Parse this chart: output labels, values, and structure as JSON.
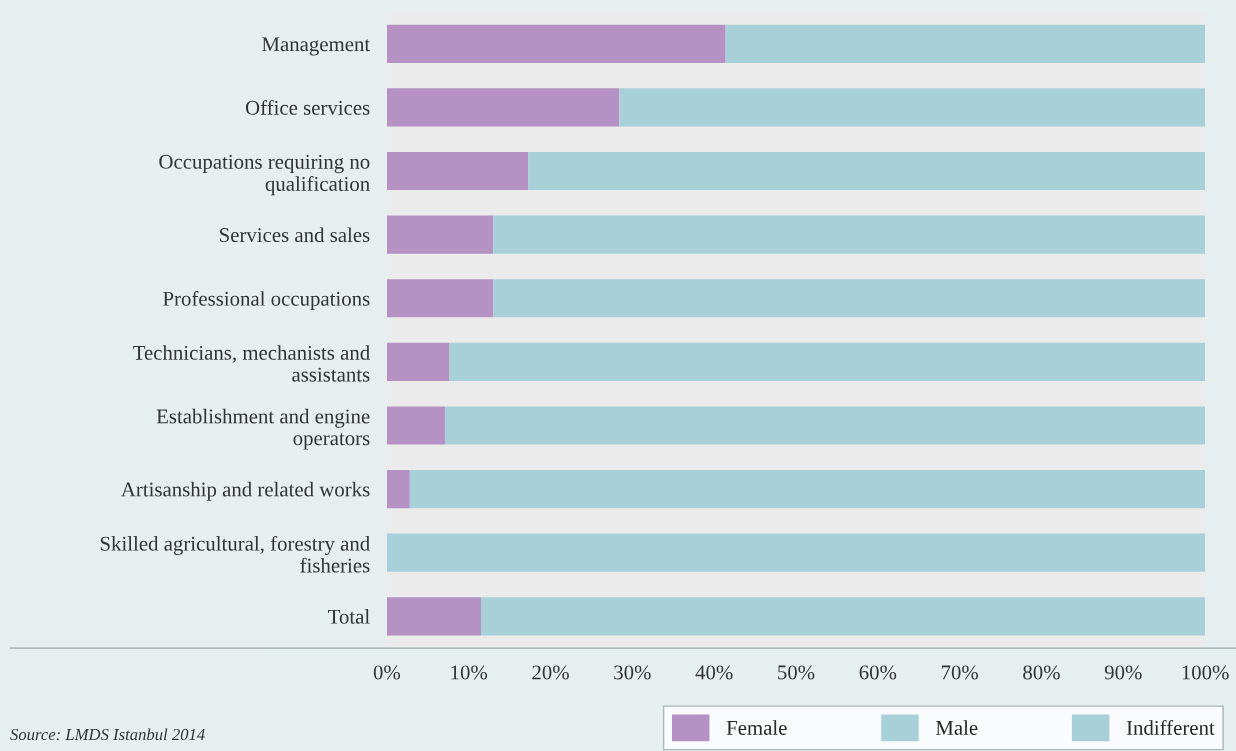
{
  "chart_data": {
    "type": "bar",
    "orientation": "horizontal",
    "stacked": true,
    "categories": [
      "Management",
      "Office services",
      "Occupations requiring no\nqualification",
      "Services and sales",
      "Professional occupations",
      "Technicians, mechanists and\nassistants",
      "Establishment and engine\noperators",
      "Artisanship and related works",
      "Skilled agricultural, forestry and\nfisheries",
      "Total"
    ],
    "series": [
      {
        "name": "Female",
        "color": "#b591c4",
        "values": [
          41.4,
          28.4,
          17.3,
          13.0,
          13.0,
          7.6,
          7.1,
          2.8,
          0,
          11.5
        ]
      },
      {
        "name": "Male",
        "color": "#a8d0d8",
        "values": [
          58.6,
          71.6,
          82.7,
          87.0,
          87.0,
          92.4,
          92.9,
          97.2,
          100,
          88.5
        ]
      },
      {
        "name": "Indifferent",
        "color": "#a8d0d8",
        "values": [
          0,
          0,
          0,
          0,
          0,
          0,
          0,
          0,
          0,
          0
        ]
      }
    ],
    "xlim": [
      0,
      100
    ],
    "xticks": [
      {
        "value": 0,
        "label": "0%"
      },
      {
        "value": 10,
        "label": "10%"
      },
      {
        "value": 20,
        "label": "20%"
      },
      {
        "value": 30,
        "label": "30%"
      },
      {
        "value": 40,
        "label": "40%"
      },
      {
        "value": 50,
        "label": "50%"
      },
      {
        "value": 60,
        "label": "60%"
      },
      {
        "value": 70,
        "label": "70%"
      },
      {
        "value": 80,
        "label": "80%"
      },
      {
        "value": 90,
        "label": "90%"
      },
      {
        "value": 100,
        "label": "100%"
      }
    ],
    "grid": false,
    "legend": "bottom",
    "annotations": [
      "Source: LMDS Istanbul 2014"
    ]
  }
}
